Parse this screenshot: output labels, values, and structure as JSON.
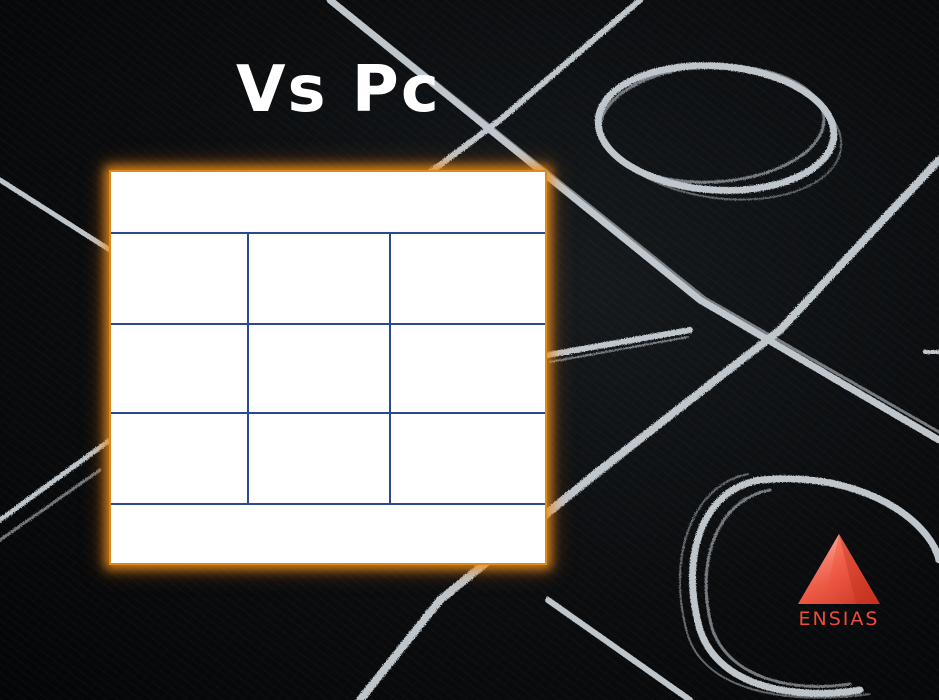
{
  "title": "Vs Pc",
  "board": {
    "status_top": "",
    "status_bottom": "",
    "cells": [
      [
        "",
        "",
        ""
      ],
      [
        "",
        "",
        ""
      ],
      [
        "",
        "",
        ""
      ]
    ]
  },
  "logo": {
    "text": "ENSIAS",
    "color": "#ef4b3c"
  },
  "colors": {
    "frame_glow": "#e08a16",
    "grid_lines": "#2a4a8f",
    "chalk": "#dfe8ee"
  }
}
